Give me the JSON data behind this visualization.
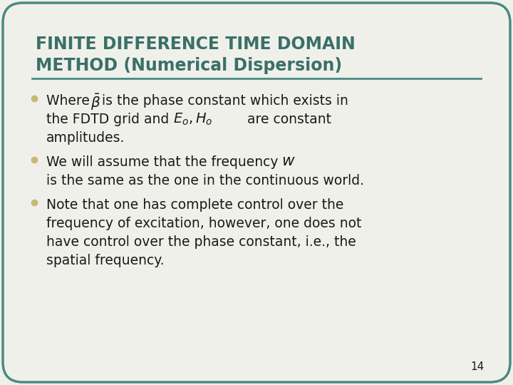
{
  "title_line1": "FINITE DIFFERENCE TIME DOMAIN",
  "title_line2": "METHOD (Numerical Dispersion)",
  "title_color": "#3a7068",
  "background_color": "#f0f0eb",
  "border_color": "#4a8a80",
  "separator_color": "#4a8a80",
  "bullet_color": "#c8b87a",
  "text_color": "#1a1a1a",
  "page_number": "14",
  "figsize": [
    7.2,
    5.4
  ],
  "dpi": 100
}
